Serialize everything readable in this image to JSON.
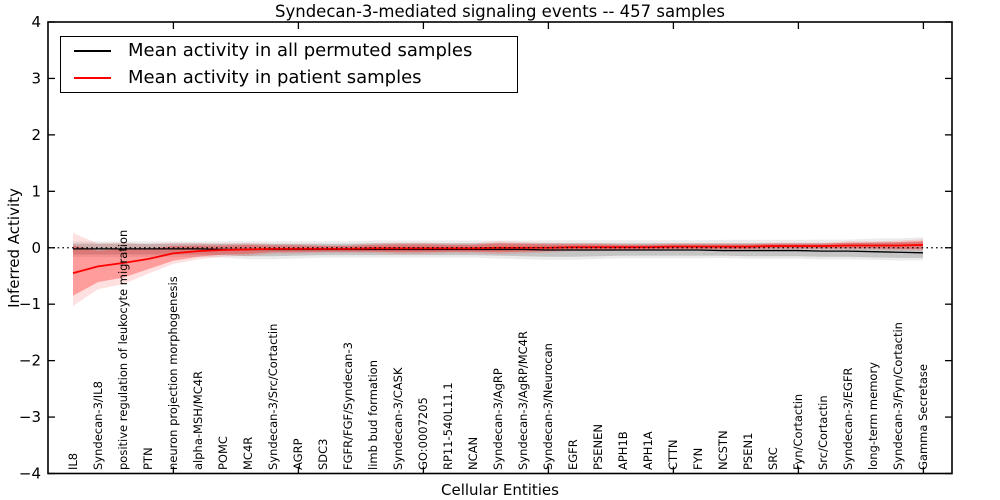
{
  "chart_data": {
    "type": "line",
    "title": "Syndecan-3-mediated signaling events -- 457 samples",
    "sample_count": 457,
    "xlabel": "Cellular Entities",
    "ylabel": "Inferred Activity",
    "ylim": [
      -4,
      4
    ],
    "ytick_labels": [
      "4",
      "3",
      "2",
      "1",
      "0",
      "−1",
      "−2",
      "−3",
      "−4"
    ],
    "ytick_values": [
      4,
      3,
      2,
      1,
      0,
      -1,
      -2,
      -3,
      -4
    ],
    "grid": false,
    "legend_position": "upper left",
    "zero_line": {
      "y": 0,
      "style": "dotted",
      "color": "#000000"
    },
    "categories": [
      "IL8",
      "Syndecan-3/IL8",
      "positive regulation of leukocyte migration",
      "PTN",
      "neuron projection morphogenesis",
      "alpha-MSH/MC4R",
      "POMC",
      "MC4R",
      "Syndecan-3/Src/Cortactin",
      "AGRP",
      "SDC3",
      "FGFR/FGF/Syndecan-3",
      "limb bud formation",
      "Syndecan-3/CASK",
      "GO:0007205",
      "RP11-540L11.1",
      "NCAN",
      "Syndecan-3/AgRP",
      "Syndecan-3/AgRP/MC4R",
      "Syndecan-3/Neurocan",
      "EGFR",
      "PSENEN",
      "APH1B",
      "APH1A",
      "CTTN",
      "FYN",
      "NCSTN",
      "PSEN1",
      "SRC",
      "Fyn/Cortactin",
      "Src/Cortactin",
      "Syndecan-3/EGFR",
      "long-term memory",
      "Syndecan-3/Fyn/Cortactin",
      "Gamma Secretase"
    ],
    "series": [
      {
        "name": "Mean activity in all permuted samples",
        "color": "#000000",
        "band_color": "#bfbfbf",
        "values": [
          -0.02,
          -0.02,
          -0.02,
          -0.02,
          -0.02,
          -0.02,
          -0.03,
          -0.03,
          -0.03,
          -0.03,
          -0.03,
          -0.03,
          -0.03,
          -0.03,
          -0.03,
          -0.03,
          -0.03,
          -0.03,
          -0.03,
          -0.04,
          -0.04,
          -0.04,
          -0.04,
          -0.04,
          -0.04,
          -0.04,
          -0.05,
          -0.05,
          -0.05,
          -0.05,
          -0.06,
          -0.06,
          -0.07,
          -0.08,
          -0.09
        ],
        "band_low": [
          -0.12,
          -0.12,
          -0.12,
          -0.12,
          -0.12,
          -0.12,
          -0.13,
          -0.15,
          -0.15,
          -0.14,
          -0.13,
          -0.13,
          -0.13,
          -0.13,
          -0.13,
          -0.13,
          -0.13,
          -0.14,
          -0.15,
          -0.16,
          -0.16,
          -0.15,
          -0.14,
          -0.14,
          -0.14,
          -0.14,
          -0.14,
          -0.15,
          -0.15,
          -0.15,
          -0.16,
          -0.16,
          -0.17,
          -0.18,
          -0.18
        ],
        "band_high": [
          0.07,
          0.07,
          0.07,
          0.07,
          0.07,
          0.07,
          0.07,
          0.07,
          0.07,
          0.07,
          0.07,
          0.07,
          0.08,
          0.08,
          0.08,
          0.08,
          0.08,
          0.08,
          0.08,
          0.08,
          0.08,
          0.08,
          0.08,
          0.08,
          0.08,
          0.08,
          0.08,
          0.08,
          0.08,
          0.08,
          0.08,
          0.08,
          0.09,
          0.09,
          0.1
        ]
      },
      {
        "name": "Mean activity in patient samples",
        "color": "#ff0000",
        "band_color": "#ff9999",
        "values": [
          -0.45,
          -0.33,
          -0.27,
          -0.2,
          -0.1,
          -0.06,
          -0.04,
          -0.03,
          -0.02,
          -0.02,
          -0.02,
          -0.02,
          -0.01,
          -0.01,
          -0.01,
          -0.01,
          -0.01,
          0.0,
          0.0,
          0.0,
          0.01,
          0.01,
          0.01,
          0.01,
          0.02,
          0.02,
          0.02,
          0.02,
          0.03,
          0.03,
          0.03,
          0.04,
          0.04,
          0.04,
          0.05
        ],
        "band_low": [
          -0.85,
          -0.61,
          -0.53,
          -0.38,
          -0.23,
          -0.16,
          -0.12,
          -0.11,
          -0.08,
          -0.08,
          -0.07,
          -0.07,
          -0.07,
          -0.08,
          -0.08,
          -0.07,
          -0.07,
          -0.08,
          -0.07,
          -0.06,
          -0.04,
          -0.04,
          -0.03,
          -0.03,
          -0.02,
          -0.02,
          -0.02,
          -0.02,
          -0.01,
          -0.01,
          -0.01,
          -0.01,
          -0.01,
          -0.02,
          -0.02
        ],
        "band_high": [
          0.04,
          -0.05,
          -0.02,
          -0.02,
          0.03,
          0.04,
          0.04,
          0.05,
          0.04,
          0.04,
          0.03,
          0.03,
          0.05,
          0.06,
          0.06,
          0.05,
          0.05,
          0.08,
          0.07,
          0.06,
          0.06,
          0.06,
          0.05,
          0.05,
          0.06,
          0.06,
          0.06,
          0.06,
          0.07,
          0.07,
          0.07,
          0.09,
          0.09,
          0.1,
          0.12
        ]
      }
    ]
  }
}
